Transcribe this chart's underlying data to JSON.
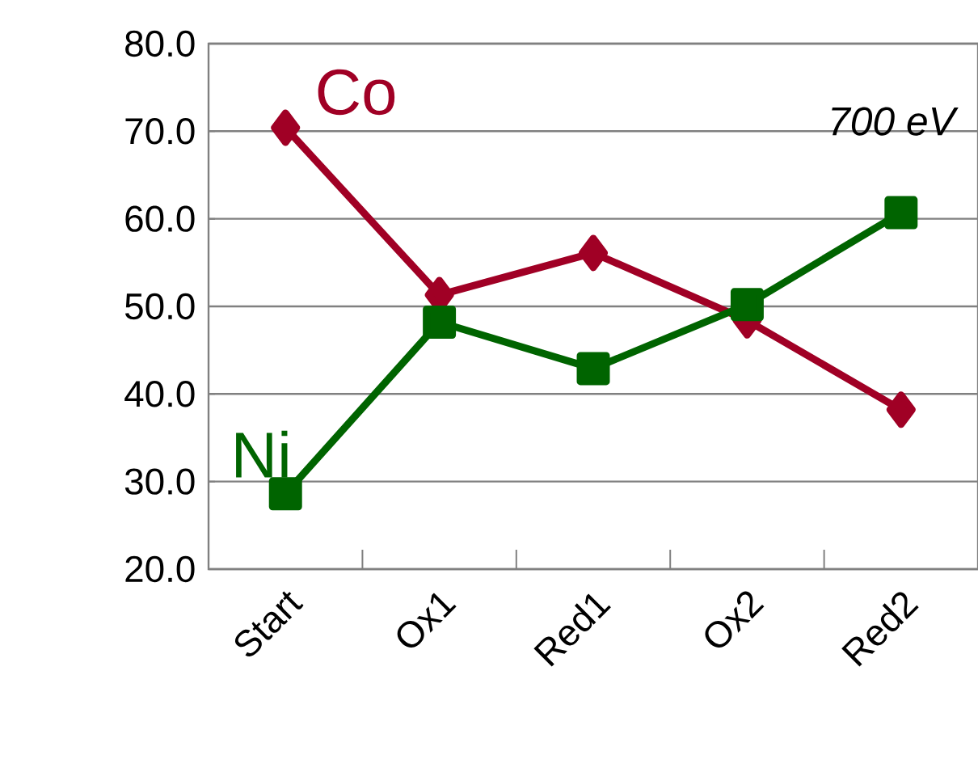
{
  "chart_data": {
    "type": "line",
    "categories": [
      "Start",
      "Ox1",
      "Red1",
      "Ox2",
      "Red2"
    ],
    "series": [
      {
        "name": "Co",
        "color": "#a00025",
        "marker": "diamond",
        "values": [
          70.4,
          51.3,
          56.1,
          48.4,
          38.2
        ]
      },
      {
        "name": "Ni",
        "color": "#006400",
        "marker": "square",
        "values": [
          28.6,
          48.2,
          42.9,
          50.2,
          60.7
        ]
      }
    ],
    "ylim": [
      20,
      80
    ],
    "yticks": [
      {
        "value": 20,
        "label": "20.0"
      },
      {
        "value": 30,
        "label": "30.0"
      },
      {
        "value": 40,
        "label": "40.0"
      },
      {
        "value": 50,
        "label": "50.0"
      },
      {
        "value": 60,
        "label": "60.0"
      },
      {
        "value": 70,
        "label": "70.0"
      },
      {
        "value": 80,
        "label": "80.0"
      }
    ],
    "grid": "y",
    "legend": false,
    "line_style": "solid",
    "annotations": [
      "*700 eV*"
    ]
  }
}
